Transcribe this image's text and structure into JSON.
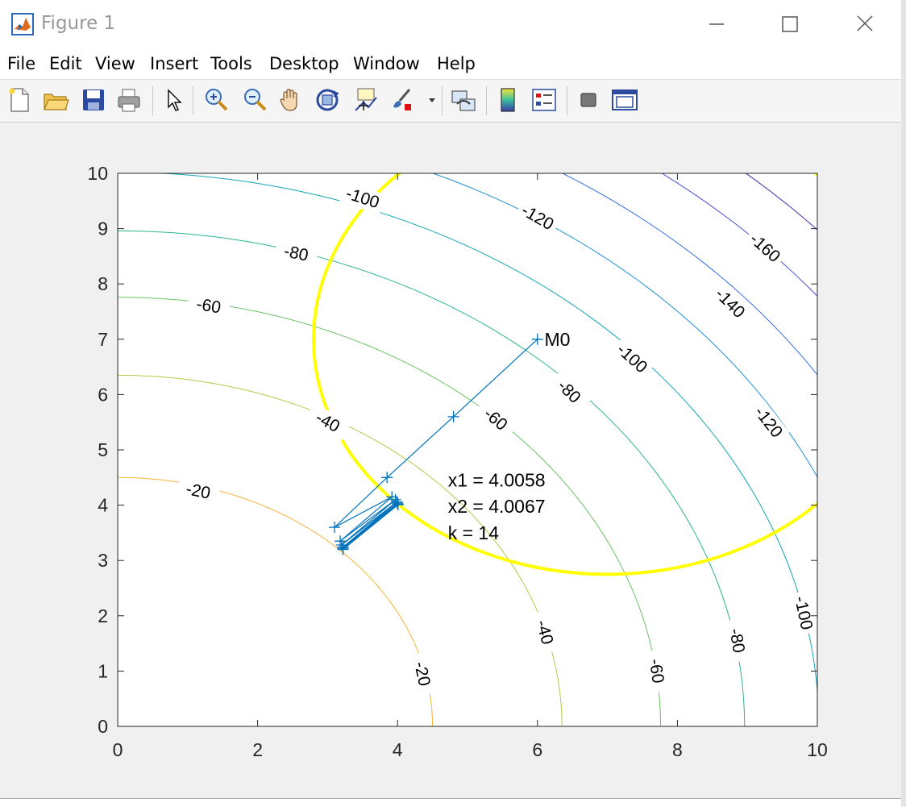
{
  "window": {
    "title": "Figure 1",
    "minimize_icon": "minimize-icon",
    "maximize_icon": "maximize-icon",
    "close_icon": "close-icon"
  },
  "menu": [
    "File",
    "Edit",
    "View",
    "Insert",
    "Tools",
    "Desktop",
    "Window",
    "Help"
  ],
  "toolbar": [
    {
      "name": "new-figure-icon"
    },
    {
      "name": "open-file-icon"
    },
    {
      "name": "save-figure-icon"
    },
    {
      "name": "print-figure-icon"
    },
    {
      "name": "edit-plot-cursor-icon"
    },
    {
      "name": "zoom-in-icon"
    },
    {
      "name": "zoom-out-icon"
    },
    {
      "name": "pan-hand-icon"
    },
    {
      "name": "rotate-3d-icon"
    },
    {
      "name": "data-cursor-icon"
    },
    {
      "name": "brush-icon"
    },
    {
      "name": "link-plot-icon"
    },
    {
      "name": "insert-colorbar-icon"
    },
    {
      "name": "insert-legend-icon"
    },
    {
      "name": "hide-plot-tools-icon"
    },
    {
      "name": "show-plot-tools-icon"
    }
  ],
  "colors": {
    "constraint": "#ffff00",
    "path": "#0072bd",
    "contours": {
      "-20": "#f5b53a",
      "-40": "#b9c64a",
      "-60": "#6bc266",
      "-80": "#2cb592",
      "-100": "#12a8b4",
      "-120": "#1e8fd4",
      "-140": "#2e6fe0",
      "-160": "#4650d8",
      "-180": "#4b2aa8"
    }
  },
  "chart_data": {
    "type": "contour",
    "xlim": [
      0,
      10
    ],
    "ylim": [
      0,
      10
    ],
    "x_ticks": [
      0,
      2,
      4,
      6,
      8,
      10
    ],
    "y_ticks": [
      0,
      1,
      2,
      3,
      4,
      5,
      6,
      7,
      8,
      9,
      10
    ],
    "contour_center": [
      0,
      0
    ],
    "contour_levels": [
      -20,
      -40,
      -60,
      -80,
      -100,
      -120,
      -140,
      -160,
      -180
    ],
    "contour_radii": [
      4.5,
      6.35,
      7.76,
      8.96,
      10.02,
      10.97,
      11.85,
      12.67,
      13.44
    ],
    "contour_labels": [
      {
        "text": "-20",
        "x": 1.15,
        "y": 4.25,
        "angle": 12
      },
      {
        "text": "-20",
        "x": 4.35,
        "y": 0.95,
        "angle": 78
      },
      {
        "text": "-40",
        "x": 3.0,
        "y": 5.5,
        "angle": 28
      },
      {
        "text": "-40",
        "x": 6.1,
        "y": 1.7,
        "angle": 75
      },
      {
        "text": "-60",
        "x": 1.3,
        "y": 7.6,
        "angle": 10
      },
      {
        "text": "-60",
        "x": 5.4,
        "y": 5.55,
        "angle": 40
      },
      {
        "text": "-60",
        "x": 7.7,
        "y": 1.0,
        "angle": 82
      },
      {
        "text": "-80",
        "x": 2.55,
        "y": 8.55,
        "angle": 12
      },
      {
        "text": "-80",
        "x": 6.45,
        "y": 6.05,
        "angle": 45
      },
      {
        "text": "-80",
        "x": 8.85,
        "y": 1.55,
        "angle": 80
      },
      {
        "text": "-100",
        "x": 3.5,
        "y": 9.55,
        "angle": 18
      },
      {
        "text": "-100",
        "x": 7.35,
        "y": 6.65,
        "angle": 42
      },
      {
        "text": "-100",
        "x": 9.8,
        "y": 2.05,
        "angle": 78
      },
      {
        "text": "-120",
        "x": 6.0,
        "y": 9.2,
        "angle": 30
      },
      {
        "text": "-120",
        "x": 9.3,
        "y": 5.5,
        "angle": 52
      },
      {
        "text": "-140",
        "x": 8.75,
        "y": 7.65,
        "angle": 45
      },
      {
        "text": "-160",
        "x": 9.25,
        "y": 8.65,
        "angle": 42
      }
    ],
    "constraint_ellipse": {
      "center": [
        7,
        7
      ],
      "rx": 4.2,
      "ry": 4.25
    },
    "path_points": [
      [
        6,
        7
      ],
      [
        4.8,
        5.6
      ],
      [
        3.85,
        4.5
      ],
      [
        3.1,
        3.6
      ],
      [
        3.92,
        4.15
      ],
      [
        3.18,
        3.35
      ],
      [
        3.97,
        4.1
      ],
      [
        3.2,
        3.28
      ],
      [
        3.99,
        4.06
      ],
      [
        3.22,
        3.24
      ],
      [
        4.0,
        4.04
      ],
      [
        3.22,
        3.22
      ],
      [
        4.005,
        4.02
      ],
      [
        3.22,
        3.2
      ],
      [
        4.0058,
        4.0067
      ]
    ],
    "annotations": [
      {
        "text": "M0",
        "x": 6.1,
        "y": 7.0
      },
      {
        "text": "x1 = 4.0058",
        "x": 4.72,
        "y": 4.45
      },
      {
        "text": "x2 = 4.0067",
        "x": 4.72,
        "y": 3.98
      },
      {
        "text": "k = 14",
        "x": 4.72,
        "y": 3.5
      }
    ]
  }
}
